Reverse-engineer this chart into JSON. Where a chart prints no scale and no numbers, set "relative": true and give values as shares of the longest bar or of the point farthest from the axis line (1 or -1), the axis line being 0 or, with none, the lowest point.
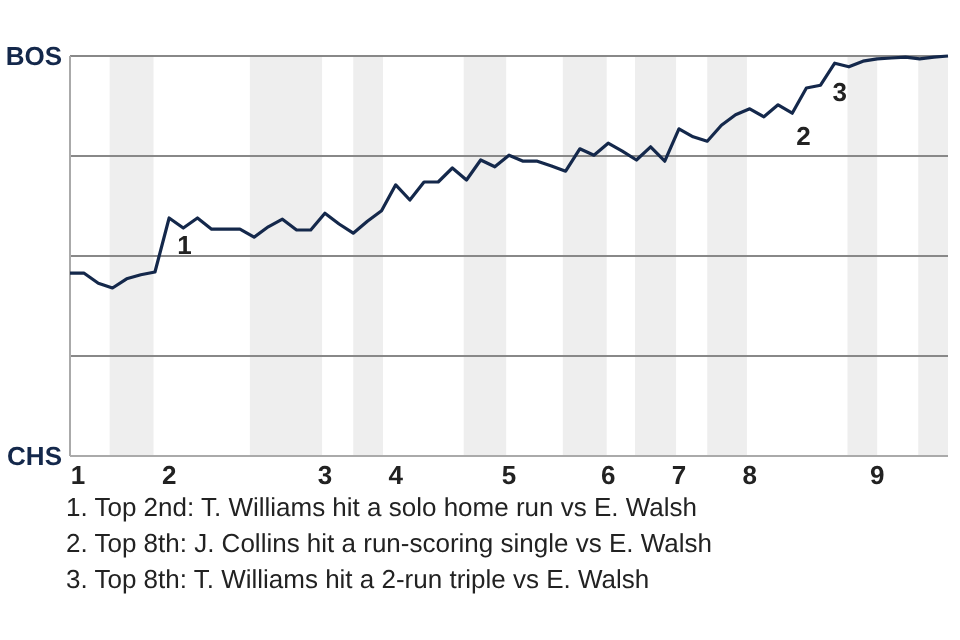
{
  "chart_data": {
    "type": "line",
    "relative": true,
    "categories": [
      "1",
      null,
      null,
      null,
      null,
      null,
      null,
      "2",
      null,
      null,
      null,
      null,
      null,
      null,
      null,
      null,
      null,
      null,
      "3",
      null,
      null,
      null,
      null,
      "4",
      null,
      null,
      null,
      null,
      null,
      null,
      null,
      "5",
      null,
      null,
      null,
      null,
      null,
      null,
      "6",
      null,
      null,
      null,
      null,
      "7",
      null,
      null,
      null,
      null,
      "8",
      null,
      null,
      null,
      null,
      null,
      null,
      null,
      null,
      "9",
      null,
      null,
      null,
      null,
      null
    ],
    "grid": "y",
    "marker": "none",
    "line_style": "solid",
    "series": [
      {
        "color": "#14284b",
        "values": [
          0.457,
          0.457,
          0.432,
          0.42,
          0.443,
          0.453,
          0.46,
          0.595,
          0.57,
          0.595,
          0.567,
          0.567,
          0.567,
          0.547,
          0.573,
          0.592,
          0.565,
          0.565,
          0.607,
          0.58,
          0.557,
          0.587,
          0.613,
          0.678,
          0.64,
          0.685,
          0.685,
          0.72,
          0.69,
          0.74,
          0.723,
          0.752,
          0.737,
          0.737,
          0.725,
          0.712,
          0.768,
          0.752,
          0.782,
          0.762,
          0.74,
          0.773,
          0.737,
          0.818,
          0.798,
          0.787,
          0.827,
          0.853,
          0.868,
          0.848,
          0.878,
          0.857,
          0.92,
          0.927,
          0.982,
          0.973,
          0.987,
          0.993,
          0.995,
          0.997,
          0.993,
          0.997,
          1
        ]
      }
    ],
    "annotations": [
      "BOS",
      "CHS",
      "1",
      "2",
      "3",
      "1. Top 2nd: T. Williams hit a solo home run vs E. Walsh",
      "2. Top 8th: J. Collins hit a run-scoring single vs E. Walsh",
      "3. Top 8th: T. Williams hit a 2-run triple vs E. Walsh"
    ]
  }
}
